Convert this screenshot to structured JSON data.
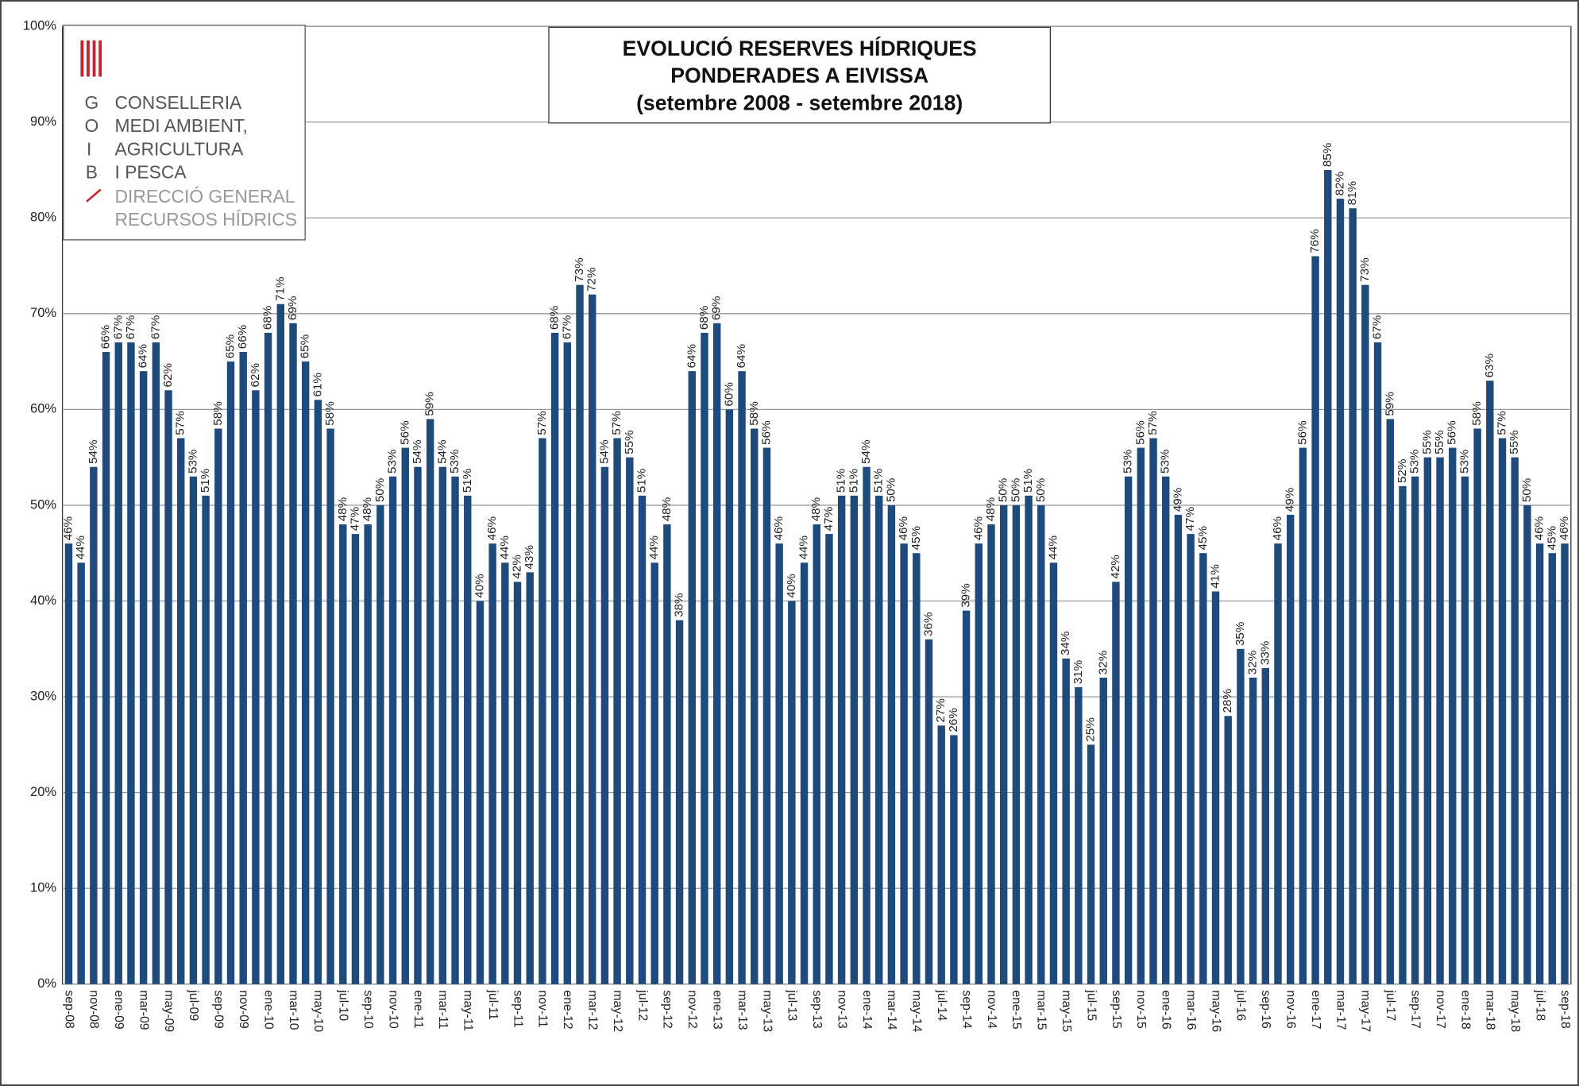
{
  "chart_data": {
    "type": "bar",
    "title": [
      "EVOLUCIÓ RESERVES HÍDRIQUES",
      "PONDERADES A EIVISSA",
      "(setembre 2008 - setembre 2018)"
    ],
    "logo": {
      "letters": [
        "G",
        "O",
        "I",
        "B"
      ],
      "lines": [
        "CONSELLERIA",
        "MEDI AMBIENT,",
        "AGRICULTURA",
        "I PESCA"
      ],
      "sublines": [
        "DIRECCIÓ GENERAL",
        "RECURSOS HÍDRICS"
      ]
    },
    "color": "#1e4a7c",
    "categories": [
      "sep-08",
      null,
      "nov-08",
      null,
      "ene-09",
      null,
      "mar-09",
      null,
      "may-09",
      null,
      "jul-09",
      null,
      "sep-09",
      null,
      "nov-09",
      null,
      "ene-10",
      null,
      "mar-10",
      null,
      "may-10",
      null,
      "jul-10",
      null,
      "sep-10",
      null,
      "nov-10",
      null,
      "ene-11",
      null,
      "mar-11",
      null,
      "may-11",
      null,
      "jul-11",
      null,
      "sep-11",
      null,
      "nov-11",
      null,
      "ene-12",
      null,
      "mar-12",
      null,
      "may-12",
      null,
      "jul-12",
      null,
      "sep-12",
      null,
      "nov-12",
      null,
      "ene-13",
      null,
      "mar-13",
      null,
      "may-13",
      null,
      "jul-13",
      null,
      "sep-13",
      null,
      "nov-13",
      null,
      "ene-14",
      null,
      "mar-14",
      null,
      "may-14",
      null,
      "jul-14",
      null,
      "sep-14",
      null,
      "nov-14",
      null,
      "ene-15",
      null,
      "mar-15",
      null,
      "may-15",
      null,
      "jul-15",
      null,
      "sep-15",
      null,
      "nov-15",
      null,
      "ene-16",
      null,
      "mar-16",
      null,
      "may-16",
      null,
      "jul-16",
      null,
      "sep-16",
      null,
      "nov-16",
      null,
      "ene-17",
      null,
      "mar-17",
      null,
      "may-17",
      null,
      "jul-17",
      null,
      "sep-17",
      null,
      "nov-17",
      null,
      "ene-18",
      null,
      "mar-18",
      null,
      "may-18",
      null,
      "jul-18",
      null,
      "sep-18"
    ],
    "values": [
      46,
      44,
      54,
      66,
      67,
      67,
      64,
      67,
      62,
      57,
      53,
      51,
      58,
      65,
      66,
      62,
      68,
      71,
      69,
      65,
      61,
      58,
      48,
      47,
      48,
      50,
      53,
      56,
      54,
      59,
      54,
      53,
      51,
      40,
      46,
      44,
      42,
      43,
      57,
      68,
      67,
      73,
      72,
      54,
      57,
      55,
      51,
      44,
      48,
      38,
      64,
      68,
      69,
      60,
      64,
      58,
      56,
      46,
      40,
      44,
      48,
      47,
      51,
      51,
      54,
      51,
      50,
      46,
      45,
      36,
      27,
      26,
      39,
      46,
      48,
      50,
      50,
      51,
      50,
      44,
      34,
      31,
      25,
      32,
      42,
      53,
      56,
      57,
      53,
      49,
      47,
      45,
      41,
      28,
      35,
      32,
      33,
      46,
      49,
      56,
      76,
      85,
      82,
      81,
      73,
      67,
      59,
      52,
      53,
      55,
      55,
      56,
      53,
      58,
      63,
      57,
      55,
      50,
      46,
      45,
      46
    ],
    "value_labels": [
      "46%",
      "44%",
      "54%",
      "66%",
      "67%",
      "67%",
      "64%",
      "67%",
      "62%",
      "57%",
      "53%",
      "51%",
      "58%",
      "65%",
      "66%",
      "62%",
      "68%",
      "71%",
      "69%",
      "65%",
      "61%",
      "58%",
      "48%",
      "47%",
      "48%",
      "50%",
      "53%",
      "56%",
      "54%",
      "59%",
      "54%",
      "53%",
      "51%",
      "40%",
      "46%",
      "44%",
      "42%",
      "43%",
      "57%",
      "68%",
      "67%",
      "73%",
      "72%",
      "54%",
      "57%",
      "55%",
      "51%",
      "44%",
      "48%",
      "38%",
      "64%",
      "68%",
      "69%",
      "60%",
      "64%",
      "58%",
      "56%",
      "46%",
      "40%",
      "44%",
      "48%",
      "47%",
      "51%",
      "51%",
      "54%",
      "51%",
      "50%",
      "46%",
      "45%",
      "36%",
      "27%",
      "26%",
      "39%",
      "46%",
      "48%",
      "50%",
      "50%",
      "51%",
      "50%",
      "44%",
      "34%",
      "31%",
      "25%",
      "32%",
      "42%",
      "53%",
      "56%",
      "57%",
      "53%",
      "49%",
      "47%",
      "45%",
      "41%",
      "28%",
      "35%",
      "32%",
      "33%",
      "46%",
      "49%",
      "56%",
      "76%",
      "85%",
      "82%",
      "81%",
      "73%",
      "67%",
      "59%",
      "52%",
      "53%",
      "55%",
      "55%",
      "56%",
      "53%",
      "58%",
      "63%",
      "57%",
      "55%",
      "50%",
      "46%",
      "45%",
      "46%"
    ],
    "ylim": [
      0,
      100
    ],
    "yticks": [
      {
        "value": 0,
        "label": "0%"
      },
      {
        "value": 10,
        "label": "10%"
      },
      {
        "value": 20,
        "label": "20%"
      },
      {
        "value": 30,
        "label": "30%"
      },
      {
        "value": 40,
        "label": "40%"
      },
      {
        "value": 50,
        "label": "50%"
      },
      {
        "value": 60,
        "label": "60%"
      },
      {
        "value": 70,
        "label": "70%"
      },
      {
        "value": 80,
        "label": "80%"
      },
      {
        "value": 90,
        "label": "90%"
      },
      {
        "value": 100,
        "label": "100%"
      }
    ],
    "grid": true
  }
}
